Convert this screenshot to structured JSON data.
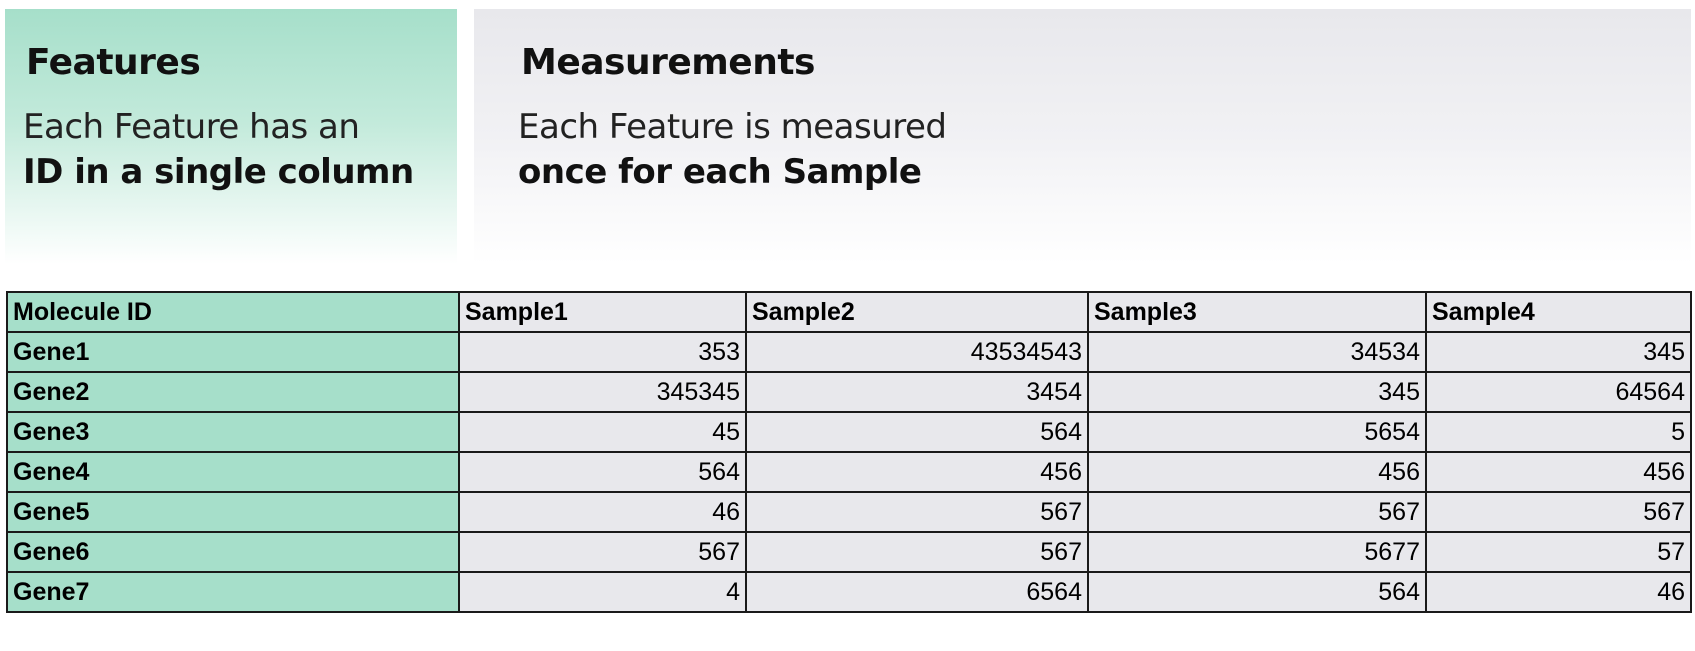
{
  "features": {
    "title": "Features",
    "line1": "Each Feature has an",
    "line2": "ID in a single column"
  },
  "measurements": {
    "title": "Measurements",
    "line1": "Each Feature is measured",
    "line2": "once for each Sample"
  },
  "colors": {
    "feature_accent": "#a6dfca",
    "measurement_bg": "#e8e8ec"
  },
  "table": {
    "headers": [
      "Molecule ID",
      "Sample1",
      "Sample2",
      "Sample3",
      "Sample4"
    ],
    "rows": [
      [
        "Gene1",
        "353",
        "43534543",
        "34534",
        "345"
      ],
      [
        "Gene2",
        "345345",
        "3454",
        "345",
        "64564"
      ],
      [
        "Gene3",
        "45",
        "564",
        "5654",
        "5"
      ],
      [
        "Gene4",
        "564",
        "456",
        "456",
        "456"
      ],
      [
        "Gene5",
        "46",
        "567",
        "567",
        "567"
      ],
      [
        "Gene6",
        "567",
        "567",
        "5677",
        "57"
      ],
      [
        "Gene7",
        "4",
        "6564",
        "564",
        "46"
      ]
    ]
  }
}
